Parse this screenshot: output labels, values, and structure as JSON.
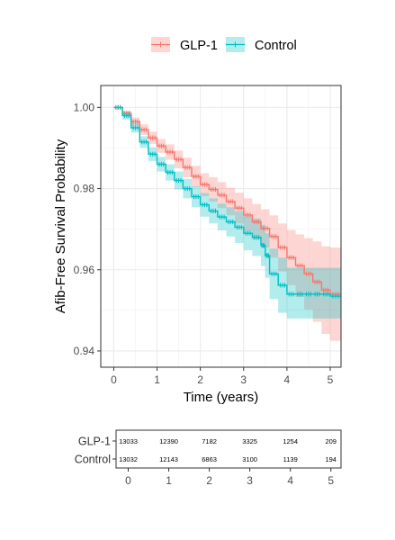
{
  "chart_data": [
    {
      "type": "line",
      "subtype": "kaplan-meier",
      "xlabel": "Time (years)",
      "ylabel": "Afib-Free Survival Probability",
      "xlim": [
        -0.3,
        5.25
      ],
      "ylim": [
        0.936,
        1.0054
      ],
      "x_ticks": [
        0,
        1,
        2,
        3,
        4,
        5
      ],
      "y_ticks": [
        0.94,
        0.96,
        0.98,
        1.0
      ],
      "y_tick_labels": [
        "0.94",
        "0.96",
        "0.98",
        "1.00"
      ],
      "grid": true,
      "legend": {
        "position": "top",
        "entries": [
          "GLP-1",
          "Control"
        ]
      },
      "series": [
        {
          "name": "GLP-1",
          "color": "#F8766D",
          "fill": "#F8766D",
          "x": [
            0,
            0.2,
            0.4,
            0.6,
            0.8,
            1.0,
            1.2,
            1.4,
            1.6,
            1.8,
            2.0,
            2.2,
            2.4,
            2.6,
            2.8,
            3.0,
            3.2,
            3.4,
            3.6,
            3.8,
            4.0,
            4.2,
            4.4,
            4.6,
            4.8,
            5.0,
            5.25
          ],
          "values": [
            1.0,
            0.9985,
            0.9965,
            0.9945,
            0.9925,
            0.9905,
            0.989,
            0.9872,
            0.9852,
            0.983,
            0.981,
            0.9798,
            0.9784,
            0.9768,
            0.9752,
            0.9735,
            0.9718,
            0.9702,
            0.9682,
            0.9655,
            0.963,
            0.961,
            0.959,
            0.957,
            0.955,
            0.954,
            0.954
          ],
          "lower": [
            1.0,
            0.9978,
            0.9955,
            0.9932,
            0.991,
            0.9888,
            0.9871,
            0.985,
            0.9828,
            0.9804,
            0.9782,
            0.9768,
            0.9752,
            0.9734,
            0.9714,
            0.9694,
            0.9674,
            0.9655,
            0.963,
            0.9596,
            0.9562,
            0.9533,
            0.9502,
            0.9472,
            0.9442,
            0.9425,
            0.9425
          ],
          "upper": [
            1.0,
            0.9992,
            0.9975,
            0.9958,
            0.994,
            0.9922,
            0.9909,
            0.9894,
            0.9876,
            0.9856,
            0.9838,
            0.9828,
            0.9816,
            0.9802,
            0.979,
            0.9776,
            0.9762,
            0.9749,
            0.9734,
            0.9714,
            0.9698,
            0.9687,
            0.9678,
            0.967,
            0.9658,
            0.9655,
            0.9655
          ]
        },
        {
          "name": "Control",
          "color": "#00BFC4",
          "fill": "#00BFC4",
          "x": [
            0,
            0.2,
            0.4,
            0.6,
            0.8,
            1.0,
            1.2,
            1.4,
            1.6,
            1.8,
            2.0,
            2.2,
            2.4,
            2.6,
            2.8,
            3.0,
            3.2,
            3.4,
            3.5,
            3.6,
            3.8,
            4.0,
            4.2,
            4.4,
            4.6,
            4.8,
            5.0,
            5.25
          ],
          "values": [
            1.0,
            0.998,
            0.995,
            0.9915,
            0.9885,
            0.986,
            0.984,
            0.982,
            0.98,
            0.978,
            0.976,
            0.9745,
            0.973,
            0.9718,
            0.9705,
            0.969,
            0.968,
            0.966,
            0.9635,
            0.959,
            0.9562,
            0.954,
            0.954,
            0.954,
            0.954,
            0.954,
            0.9535,
            0.9535
          ],
          "lower": [
            1.0,
            0.997,
            0.9938,
            0.9901,
            0.9868,
            0.9842,
            0.982,
            0.9798,
            0.9776,
            0.9754,
            0.9731,
            0.9714,
            0.9697,
            0.9682,
            0.9666,
            0.9648,
            0.9634,
            0.9609,
            0.958,
            0.9528,
            0.9494,
            0.948,
            0.948,
            0.948,
            0.948,
            0.948,
            0.948,
            0.948
          ],
          "upper": [
            1.0,
            0.999,
            0.9962,
            0.9929,
            0.9902,
            0.9878,
            0.986,
            0.9842,
            0.9824,
            0.9806,
            0.9789,
            0.9776,
            0.9763,
            0.9754,
            0.9744,
            0.9732,
            0.9726,
            0.9711,
            0.969,
            0.9652,
            0.963,
            0.9605,
            0.9605,
            0.9605,
            0.9605,
            0.9605,
            0.9605,
            0.9605
          ]
        }
      ]
    },
    {
      "type": "table",
      "title": "",
      "rows": [
        "GLP-1",
        "Control"
      ],
      "x_ticks": [
        0,
        1,
        2,
        3,
        4,
        5
      ],
      "values": [
        [
          "13033",
          "12390",
          "7182",
          "3325",
          "1254",
          "209"
        ],
        [
          "13032",
          "12143",
          "6863",
          "3100",
          "1139",
          "194"
        ]
      ],
      "colors": [
        "#F8766D",
        "#00BFC4"
      ]
    }
  ]
}
